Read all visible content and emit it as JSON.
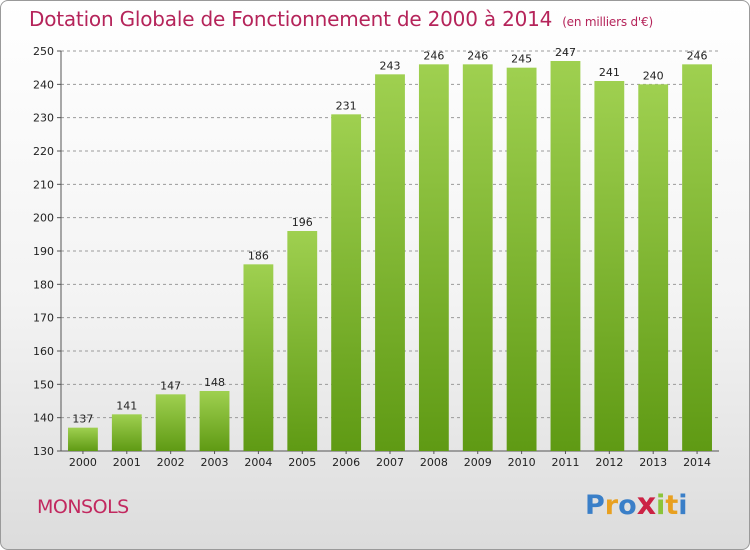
{
  "header": {
    "title": "Dotation Globale de Fonctionnement de 2000 à 2014",
    "unit": "(en milliers d'€)"
  },
  "footer": {
    "commune": "MONSOLS",
    "logo_letters": [
      "P",
      "r",
      "o",
      "x",
      "i",
      "t",
      "i"
    ]
  },
  "colors": {
    "title": "#b5245a",
    "bar_top": "#9fd050",
    "bar_bottom": "#5f9a14",
    "grid": "#9a9a9a",
    "logo": [
      "#3a7fc8",
      "#e8a020",
      "#3a7fc8",
      "#cc2244",
      "#8bc43a",
      "#e8a020",
      "#3a7fc8"
    ]
  },
  "chart_data": {
    "type": "bar",
    "title": "Dotation Globale de Fonctionnement de 2000 à 2014",
    "subtitle": "(en milliers d'€)",
    "categories": [
      "2000",
      "2001",
      "2002",
      "2003",
      "2004",
      "2005",
      "2006",
      "2007",
      "2008",
      "2009",
      "2010",
      "2011",
      "2012",
      "2013",
      "2014"
    ],
    "values": [
      137,
      141,
      147,
      148,
      186,
      196,
      231,
      243,
      246,
      246,
      245,
      247,
      241,
      240,
      246
    ],
    "ylim": [
      130,
      250
    ],
    "yticks": [
      130,
      140,
      150,
      160,
      170,
      180,
      190,
      200,
      210,
      220,
      230,
      240,
      250
    ],
    "grid": true,
    "data_labels": true
  }
}
